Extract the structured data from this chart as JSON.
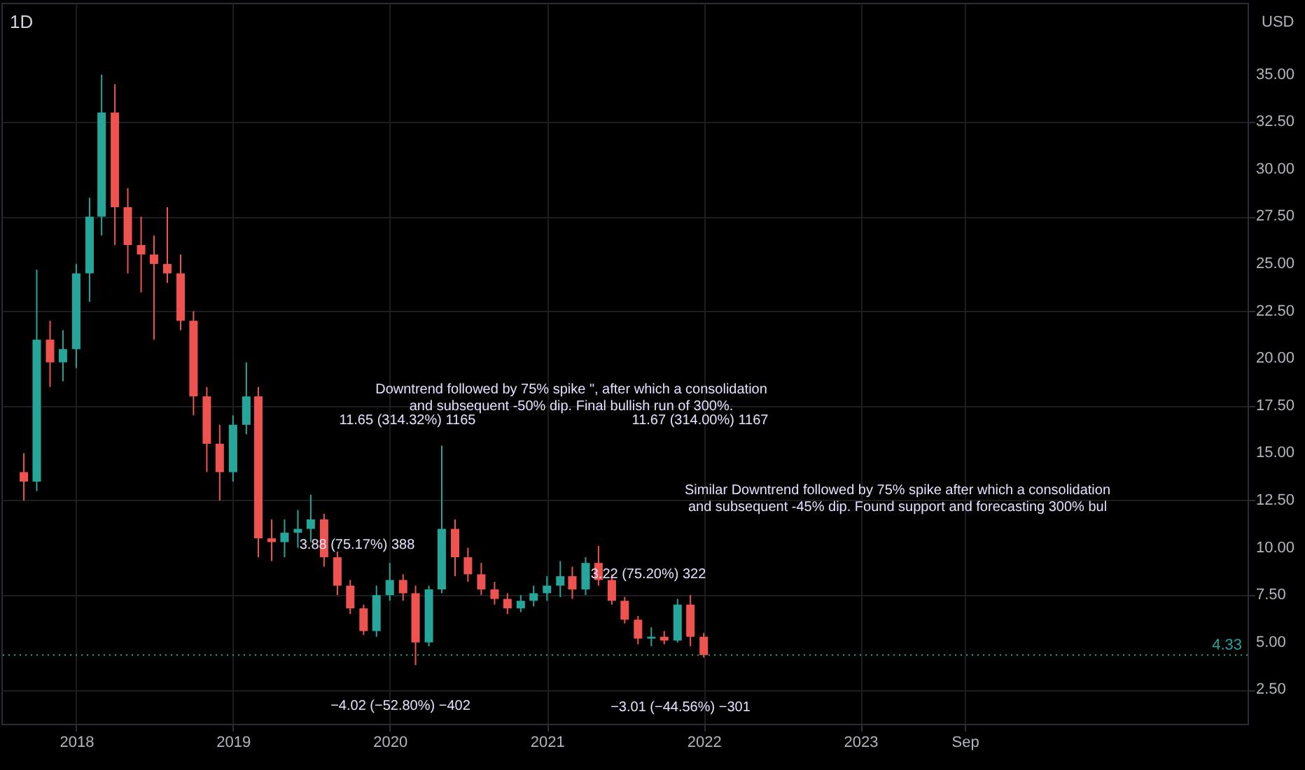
{
  "chart_data": {
    "type": "candlestick",
    "title": "1D",
    "x": [
      "2017-09",
      "2017-10",
      "2017-11",
      "2017-12",
      "2018-01",
      "2018-02",
      "2018-03",
      "2018-04",
      "2018-05",
      "2018-06",
      "2018-07",
      "2018-08",
      "2018-09",
      "2018-10",
      "2018-11",
      "2018-12",
      "2019-01",
      "2019-02",
      "2019-03",
      "2019-04",
      "2019-05",
      "2019-06",
      "2019-07",
      "2019-08",
      "2019-09",
      "2019-10",
      "2019-11",
      "2019-12",
      "2020-01",
      "2020-02",
      "2020-03",
      "2020-04",
      "2020-05",
      "2020-06",
      "2020-07",
      "2020-08",
      "2020-09",
      "2020-10",
      "2020-11",
      "2020-12",
      "2021-01",
      "2021-02",
      "2021-03",
      "2021-04",
      "2021-05",
      "2021-06",
      "2021-07",
      "2021-08",
      "2021-09",
      "2021-10",
      "2021-11",
      "2021-12",
      "2022-01"
    ],
    "ohlc": [
      [
        14,
        15,
        12.5,
        13.5
      ],
      [
        13.5,
        24.7,
        13,
        21
      ],
      [
        21,
        22,
        18.5,
        19.8
      ],
      [
        19.8,
        21.5,
        18.8,
        20.5
      ],
      [
        20.5,
        25,
        19.5,
        24.5
      ],
      [
        24.5,
        28.5,
        23,
        27.5
      ],
      [
        27.5,
        35,
        26.5,
        33
      ],
      [
        33,
        34.5,
        26,
        28
      ],
      [
        28,
        29,
        24.5,
        26
      ],
      [
        26,
        27.5,
        23.5,
        25.5
      ],
      [
        25.5,
        26.5,
        21,
        25
      ],
      [
        25,
        28,
        24,
        24.5
      ],
      [
        24.5,
        25.5,
        21.5,
        22
      ],
      [
        22,
        22.5,
        17,
        18
      ],
      [
        18,
        18.5,
        14,
        15.5
      ],
      [
        15.5,
        16.5,
        12.5,
        14
      ],
      [
        14,
        17,
        13.5,
        16.5
      ],
      [
        16.5,
        19.8,
        16,
        18
      ],
      [
        18,
        18.5,
        9.5,
        10.5
      ],
      [
        10.5,
        11.5,
        9.3,
        10.3
      ],
      [
        10.3,
        11.5,
        9.5,
        10.8
      ],
      [
        10.8,
        12,
        10,
        11
      ],
      [
        11,
        12.8,
        10.3,
        11.5
      ],
      [
        11.5,
        11.8,
        9,
        9.5
      ],
      [
        9.5,
        9.8,
        7.5,
        8
      ],
      [
        8,
        8.3,
        6.5,
        6.8
      ],
      [
        6.8,
        7,
        5.4,
        5.6
      ],
      [
        5.6,
        8,
        5.3,
        7.5
      ],
      [
        7.5,
        9.2,
        7.2,
        8.3
      ],
      [
        8.3,
        8.6,
        7.2,
        7.6
      ],
      [
        7.6,
        8,
        3.8,
        5
      ],
      [
        5,
        8,
        4.8,
        7.8
      ],
      [
        7.8,
        15.4,
        7.6,
        11
      ],
      [
        11,
        11.5,
        8.5,
        9.5
      ],
      [
        9.5,
        10,
        8.2,
        8.6
      ],
      [
        8.6,
        9.2,
        7.5,
        7.8
      ],
      [
        7.8,
        8.2,
        7,
        7.3
      ],
      [
        7.3,
        7.6,
        6.5,
        6.8
      ],
      [
        6.8,
        7.5,
        6.6,
        7.2
      ],
      [
        7.2,
        8,
        6.9,
        7.6
      ],
      [
        7.6,
        8.5,
        7.2,
        8
      ],
      [
        8,
        9.3,
        7.4,
        8.5
      ],
      [
        8.5,
        9,
        7.3,
        7.8
      ],
      [
        7.8,
        9.5,
        7.5,
        9.2
      ],
      [
        9.2,
        10.1,
        8,
        8.3
      ],
      [
        8.3,
        8.6,
        7,
        7.2
      ],
      [
        7.2,
        7.4,
        6,
        6.2
      ],
      [
        6.2,
        6.4,
        4.9,
        5.2
      ],
      [
        5.2,
        5.8,
        4.8,
        5.3
      ],
      [
        5.3,
        5.6,
        4.9,
        5.1
      ],
      [
        5.1,
        7.3,
        5,
        7
      ],
      [
        7,
        7.5,
        4.8,
        5.3
      ],
      [
        5.3,
        5.5,
        4.2,
        4.33
      ]
    ],
    "xlim": [
      "2017-07-27",
      "2025-06-04"
    ],
    "xticks": [
      {
        "value": "2018-01-01",
        "label": "2018"
      },
      {
        "value": "2019-01-01",
        "label": "2019"
      },
      {
        "value": "2020-01-01",
        "label": "2020"
      },
      {
        "value": "2021-01-01",
        "label": "2021"
      },
      {
        "value": "2022-01-01",
        "label": "2022"
      },
      {
        "value": "2023-01-01",
        "label": "2023"
      },
      {
        "value": "2023-09-01",
        "label": "Sep"
      }
    ],
    "ylim": [
      0.7,
      38.8
    ],
    "yticks": [
      {
        "value": 2.5,
        "label": "2.50"
      },
      {
        "value": 5,
        "label": "5.00"
      },
      {
        "value": 7.5,
        "label": "7.50"
      },
      {
        "value": 10,
        "label": "10.00"
      },
      {
        "value": 12.5,
        "label": "12.50"
      },
      {
        "value": 15,
        "label": "15.00"
      },
      {
        "value": 17.5,
        "label": "17.50"
      },
      {
        "value": 20,
        "label": "20.00"
      },
      {
        "value": 22.5,
        "label": "22.50"
      },
      {
        "value": 25,
        "label": "25.00"
      },
      {
        "value": 27.5,
        "label": "27.50"
      },
      {
        "value": 30,
        "label": "30.00"
      },
      {
        "value": 32.5,
        "label": "32.50"
      },
      {
        "value": 35,
        "label": "35.00"
      }
    ],
    "grid": true,
    "ref_lines": [
      {
        "axis": "y",
        "value": 4.33,
        "label": "4.33",
        "color": "#26a69a",
        "line_style": "dotted"
      }
    ],
    "annotations": [
      "USD",
      "Downtrend followed by 75% spike \", after which a consolidation and subsequent -50% dip. Final bullish run of 300%.",
      "Similar Downtrend followed by 75% spike after which a consolidation and subsequent -45% dip. Found support and forecasting 300% bul",
      "11.65 (314.32%) 1165",
      "3.88 (75.17%) 388",
      "−4.02 (−52.80%) −402",
      "11.67 (314.00%) 1167",
      "3.22 (75.20%) 322",
      "−3.01 (−44.56%) −301"
    ]
  }
}
